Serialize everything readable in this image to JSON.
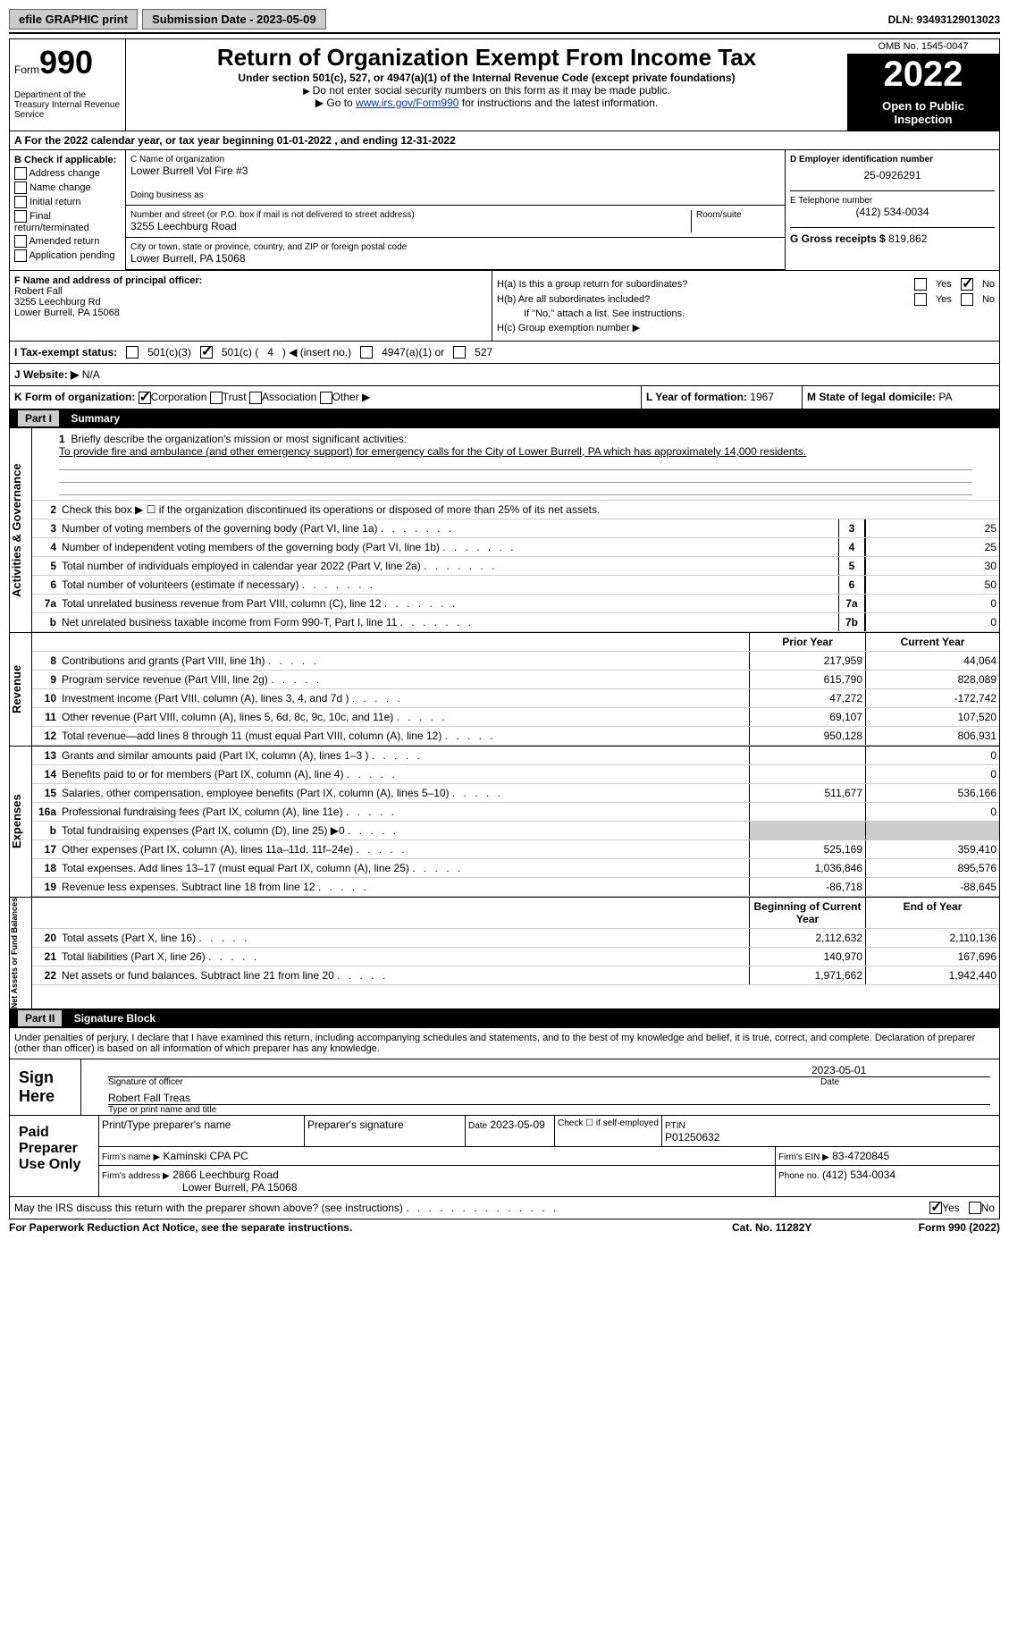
{
  "topbar": {
    "efile": "efile GRAPHIC print",
    "submission": "Submission Date - 2023-05-09",
    "dln": "DLN: 93493129013023"
  },
  "header": {
    "form_label": "Form",
    "form_num": "990",
    "dept": "Department of the Treasury\nInternal Revenue Service",
    "title": "Return of Organization Exempt From Income Tax",
    "subtitle": "Under section 501(c), 527, or 4947(a)(1) of the Internal Revenue Code (except private foundations)",
    "note1": "Do not enter social security numbers on this form as it may be made public.",
    "note2_pre": "Go to ",
    "note2_link": "www.irs.gov/Form990",
    "note2_post": " for instructions and the latest information.",
    "omb": "OMB No. 1545-0047",
    "year": "2022",
    "inspect": "Open to Public Inspection"
  },
  "row_a": "A For the 2022 calendar year, or tax year beginning 01-01-2022    , and ending 12-31-2022",
  "section_b": {
    "label": "B Check if applicable:",
    "items": [
      "Address change",
      "Name change",
      "Initial return",
      "Final return/terminated",
      "Amended return",
      "Application pending"
    ]
  },
  "section_c": {
    "name_label": "C Name of organization",
    "name": "Lower Burrell Vol Fire #3",
    "dba": "Doing business as",
    "addr_label": "Number and street (or P.O. box if mail is not delivered to street address)",
    "room": "Room/suite",
    "addr": "3255 Leechburg Road",
    "city_label": "City or town, state or province, country, and ZIP or foreign postal code",
    "city": "Lower Burrell, PA  15068"
  },
  "section_d": {
    "ein_label": "D Employer identification number",
    "ein": "25-0926291",
    "phone_label": "E Telephone number",
    "phone": "(412) 534-0034",
    "gross_label": "G Gross receipts $",
    "gross": "819,862"
  },
  "section_f": {
    "label": "F  Name and address of principal officer:",
    "name": "Robert Fall",
    "addr": "3255 Leechburg Rd",
    "city": "Lower Burrell, PA  15068"
  },
  "section_h": {
    "ha": "H(a)  Is this a group return for subordinates?",
    "hb": "H(b)  Are all subordinates included?",
    "hb_note": "If \"No,\" attach a list. See instructions.",
    "hc": "H(c)  Group exemption number ▶"
  },
  "tax_status": {
    "label": "I    Tax-exempt status:",
    "opt1": "501(c)(3)",
    "opt2_pre": "501(c) (",
    "opt2_val": "4",
    "opt2_post": ") ◀ (insert no.)",
    "opt3": "4947(a)(1) or",
    "opt4": "527"
  },
  "website": {
    "label": "J    Website: ▶",
    "val": "N/A"
  },
  "klm": {
    "k": "K Form of organization:",
    "k_corp": "Corporation",
    "k_trust": "Trust",
    "k_assoc": "Association",
    "k_other": "Other ▶",
    "l": "L Year of formation:",
    "l_val": "1967",
    "m": "M State of legal domicile:",
    "m_val": "PA"
  },
  "part1": {
    "header_num": "Part I",
    "header_title": "Summary",
    "mission_label": "Briefly describe the organization's mission or most significant activities:",
    "mission": "To provide fire and ambulance (and other emergency support) for emergency calls for the City of Lower Burrell, PA which has approximately 14,000 residents.",
    "line2": "Check this box ▶ ☐ if the organization discontinued its operations or disposed of more than 25% of its net assets.",
    "tabs": {
      "gov": "Activities & Governance",
      "rev": "Revenue",
      "exp": "Expenses",
      "net": "Net Assets or Fund Balances"
    },
    "hdr_prior": "Prior Year",
    "hdr_curr": "Current Year",
    "hdr_beg": "Beginning of Current Year",
    "hdr_end": "End of Year"
  },
  "lines_gov": [
    {
      "n": "3",
      "lbl": "Number of voting members of the governing body (Part VI, line 1a)",
      "box": "3",
      "v": "25"
    },
    {
      "n": "4",
      "lbl": "Number of independent voting members of the governing body (Part VI, line 1b)",
      "box": "4",
      "v": "25"
    },
    {
      "n": "5",
      "lbl": "Total number of individuals employed in calendar year 2022 (Part V, line 2a)",
      "box": "5",
      "v": "30"
    },
    {
      "n": "6",
      "lbl": "Total number of volunteers (estimate if necessary)",
      "box": "6",
      "v": "50"
    },
    {
      "n": "7a",
      "lbl": "Total unrelated business revenue from Part VIII, column (C), line 12",
      "box": "7a",
      "v": "0"
    },
    {
      "n": "b",
      "lbl": "Net unrelated business taxable income from Form 990-T, Part I, line 11",
      "box": "7b",
      "v": "0"
    }
  ],
  "lines_rev": [
    {
      "n": "8",
      "lbl": "Contributions and grants (Part VIII, line 1h)",
      "p": "217,959",
      "c": "44,064"
    },
    {
      "n": "9",
      "lbl": "Program service revenue (Part VIII, line 2g)",
      "p": "615,790",
      "c": "828,089"
    },
    {
      "n": "10",
      "lbl": "Investment income (Part VIII, column (A), lines 3, 4, and 7d )",
      "p": "47,272",
      "c": "-172,742"
    },
    {
      "n": "11",
      "lbl": "Other revenue (Part VIII, column (A), lines 5, 6d, 8c, 9c, 10c, and 11e)",
      "p": "69,107",
      "c": "107,520"
    },
    {
      "n": "12",
      "lbl": "Total revenue—add lines 8 through 11 (must equal Part VIII, column (A), line 12)",
      "p": "950,128",
      "c": "806,931"
    }
  ],
  "lines_exp": [
    {
      "n": "13",
      "lbl": "Grants and similar amounts paid (Part IX, column (A), lines 1–3 )",
      "p": "",
      "c": "0"
    },
    {
      "n": "14",
      "lbl": "Benefits paid to or for members (Part IX, column (A), line 4)",
      "p": "",
      "c": "0"
    },
    {
      "n": "15",
      "lbl": "Salaries, other compensation, employee benefits (Part IX, column (A), lines 5–10)",
      "p": "511,677",
      "c": "536,166"
    },
    {
      "n": "16a",
      "lbl": "Professional fundraising fees (Part IX, column (A), line 11e)",
      "p": "",
      "c": "0"
    },
    {
      "n": "b",
      "lbl": "Total fundraising expenses (Part IX, column (D), line 25) ▶0",
      "p": "grey",
      "c": "grey"
    },
    {
      "n": "17",
      "lbl": "Other expenses (Part IX, column (A), lines 11a–11d, 11f–24e)",
      "p": "525,169",
      "c": "359,410"
    },
    {
      "n": "18",
      "lbl": "Total expenses. Add lines 13–17 (must equal Part IX, column (A), line 25)",
      "p": "1,036,846",
      "c": "895,576"
    },
    {
      "n": "19",
      "lbl": "Revenue less expenses. Subtract line 18 from line 12",
      "p": "-86,718",
      "c": "-88,645"
    }
  ],
  "lines_net": [
    {
      "n": "20",
      "lbl": "Total assets (Part X, line 16)",
      "p": "2,112,632",
      "c": "2,110,136"
    },
    {
      "n": "21",
      "lbl": "Total liabilities (Part X, line 26)",
      "p": "140,970",
      "c": "167,696"
    },
    {
      "n": "22",
      "lbl": "Net assets or fund balances. Subtract line 21 from line 20",
      "p": "1,971,662",
      "c": "1,942,440"
    }
  ],
  "part2": {
    "header_num": "Part II",
    "header_title": "Signature Block",
    "declare": "Under penalties of perjury, I declare that I have examined this return, including accompanying schedules and statements, and to the best of my knowledge and belief, it is true, correct, and complete. Declaration of preparer (other than officer) is based on all information of which preparer has any knowledge.",
    "sign_here": "Sign Here",
    "sig_date": "2023-05-01",
    "sig_of_officer": "Signature of officer",
    "sig_date_lbl": "Date",
    "officer_name": "Robert Fall Treas",
    "type_name": "Type or print name and title",
    "preparer_lbl": "Paid Preparer Use Only",
    "print_name": "Print/Type preparer's name",
    "prep_sig": "Preparer's signature",
    "date_lbl": "Date",
    "date_val": "2023-05-09",
    "check_if": "Check ☐ if self-employed",
    "ptin_lbl": "PTIN",
    "ptin": "P01250632",
    "firm_name_lbl": "Firm's name    ▶",
    "firm_name": "Kaminski CPA PC",
    "firm_ein_lbl": "Firm's EIN ▶",
    "firm_ein": "83-4720845",
    "firm_addr_lbl": "Firm's address ▶",
    "firm_addr": "2866 Leechburg Road",
    "firm_city": "Lower Burrell, PA  15068",
    "firm_phone_lbl": "Phone no.",
    "firm_phone": "(412) 534-0034",
    "discuss": "May the IRS discuss this return with the preparer shown above? (see instructions)"
  },
  "footer": {
    "l": "For Paperwork Reduction Act Notice, see the separate instructions.",
    "m": "Cat. No. 11282Y",
    "r": "Form 990 (2022)"
  }
}
